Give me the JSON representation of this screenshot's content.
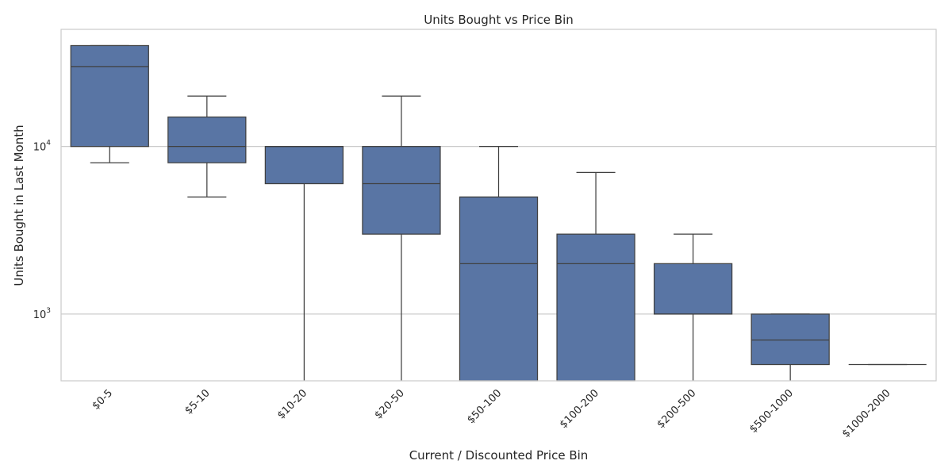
{
  "chart_data": {
    "type": "box",
    "title": "Units Bought vs Price Bin",
    "xlabel": "Current / Discounted Price Bin",
    "ylabel": "Units Bought in Last Month",
    "yscale": "log",
    "ylim": [
      400,
      50000
    ],
    "ytick_base": "10",
    "yticks": [
      {
        "value": 1000,
        "exponent": "3"
      },
      {
        "value": 10000,
        "exponent": "4"
      }
    ],
    "grid": "horizontal",
    "color": "#5975a4",
    "line_color": "#404040",
    "categories": [
      "$0-5",
      "$5-10",
      "$10-20",
      "$20-50",
      "$50-100",
      "$100-200",
      "$200-500",
      "$500-1000",
      "$1000-2000"
    ],
    "boxes": [
      {
        "category": "$0-5",
        "whislo": 8000,
        "q1": 10000,
        "med": 30000,
        "q3": 40000,
        "whishi": 40000
      },
      {
        "category": "$5-10",
        "whislo": 5000,
        "q1": 8000,
        "med": 10000,
        "q3": 15000,
        "whishi": 20000
      },
      {
        "category": "$10-20",
        "whislo": 400,
        "q1": 6000,
        "med": 10000,
        "q3": 10000,
        "whishi": 10000
      },
      {
        "category": "$20-50",
        "whislo": 400,
        "q1": 3000,
        "med": 6000,
        "q3": 10000,
        "whishi": 20000
      },
      {
        "category": "$50-100",
        "whislo": 400,
        "q1": 400,
        "med": 2000,
        "q3": 5000,
        "whishi": 10000
      },
      {
        "category": "$100-200",
        "whislo": 400,
        "q1": 400,
        "med": 2000,
        "q3": 3000,
        "whishi": 7000
      },
      {
        "category": "$200-500",
        "whislo": 400,
        "q1": 1000,
        "med": 1000,
        "q3": 2000,
        "whishi": 3000
      },
      {
        "category": "$500-1000",
        "whislo": 400,
        "q1": 500,
        "med": 700,
        "q3": 1000,
        "whishi": 1000
      },
      {
        "category": "$1000-2000",
        "whislo": 500,
        "q1": 500,
        "med": 500,
        "q3": 500,
        "whishi": 500
      }
    ]
  }
}
